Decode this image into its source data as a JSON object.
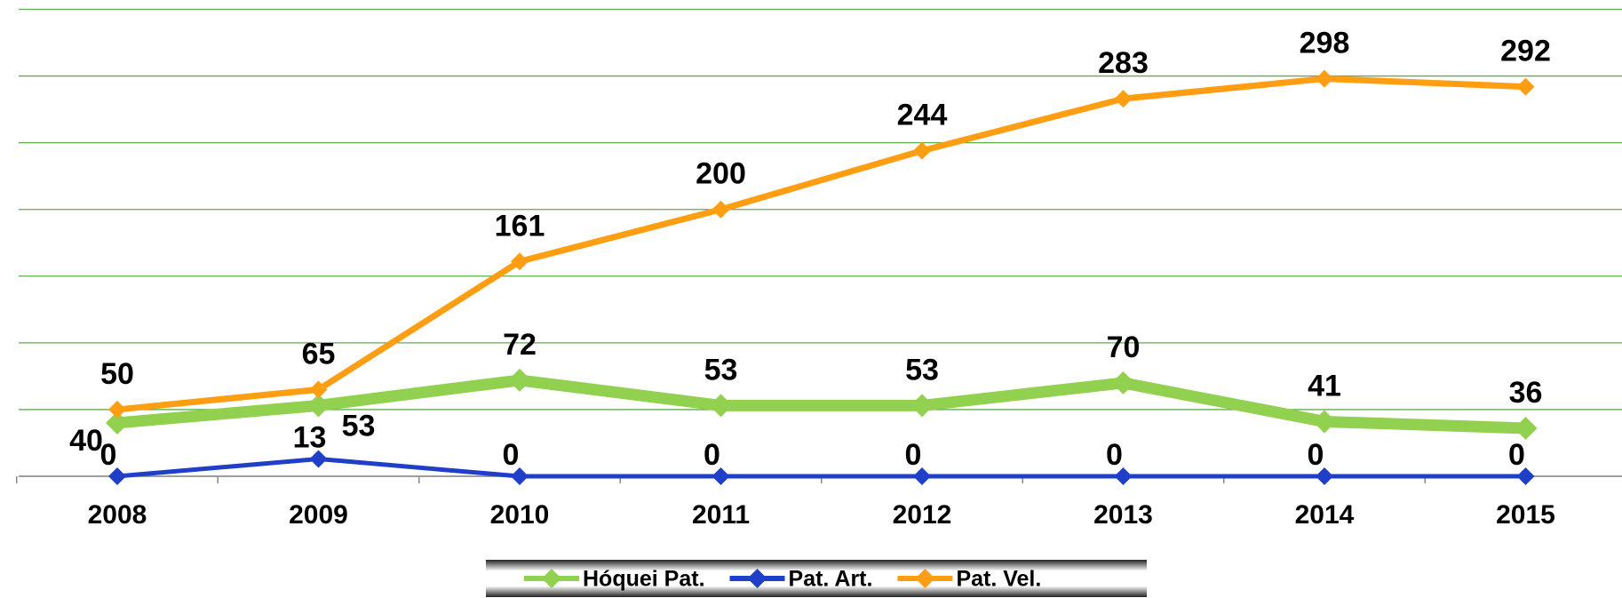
{
  "chart_data": {
    "type": "line",
    "categories": [
      "2008",
      "2009",
      "2010",
      "2011",
      "2012",
      "2013",
      "2014",
      "2015"
    ],
    "series": [
      {
        "name": "Hóquei Pat.",
        "color": "#92d050",
        "values": [
          40,
          53,
          72,
          53,
          53,
          70,
          41,
          36
        ]
      },
      {
        "name": "Pat. Art.",
        "color": "#1f3fc8",
        "values": [
          0,
          13,
          0,
          0,
          0,
          0,
          0,
          0
        ]
      },
      {
        "name": "Pat. Vel.",
        "color": "#ff9e12",
        "values": [
          50,
          65,
          161,
          200,
          244,
          283,
          298,
          292
        ]
      }
    ],
    "ylim": [
      0,
      350
    ],
    "yticks": [
      0,
      50,
      100,
      150,
      200,
      250,
      300,
      350
    ],
    "grid": true,
    "legend": "bottom"
  }
}
